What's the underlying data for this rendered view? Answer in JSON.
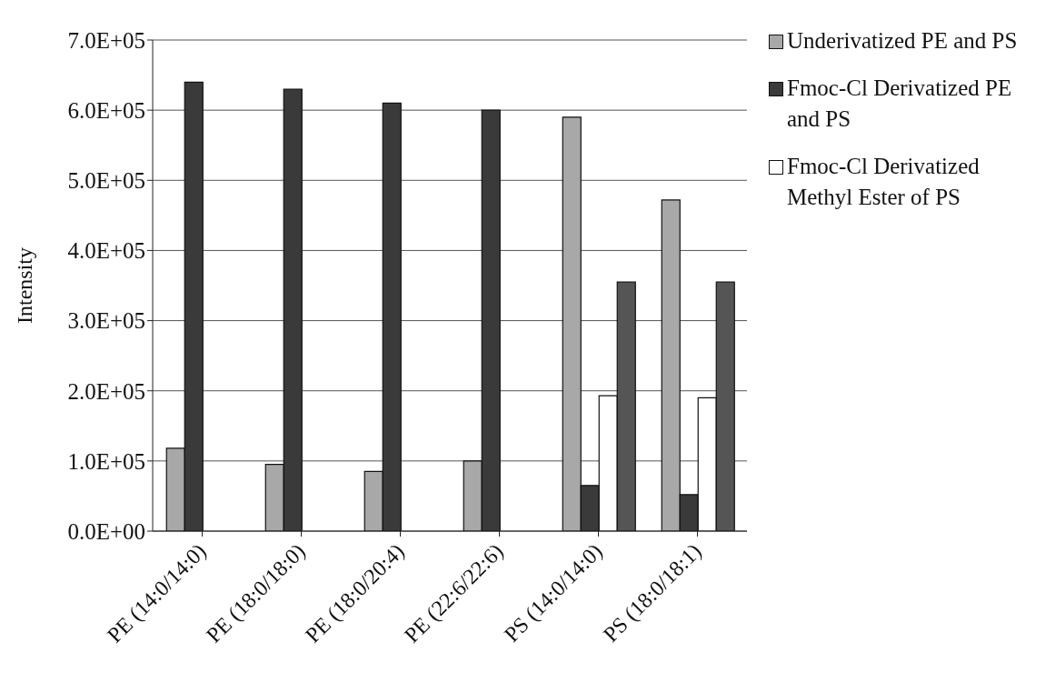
{
  "chart_data": {
    "type": "bar",
    "ylabel": "Intensity",
    "categories": [
      "PE (14:0/14:0)",
      "PE (18:0/18:0)",
      "PE (18:0/20:4)",
      "PE (22:6/22:6)",
      "PS (14:0/14:0)",
      "PS (18:0/18:1)"
    ],
    "series": [
      {
        "name": "Underivatized PE and PS",
        "color": "#a8a8a8",
        "values": [
          118000,
          95000,
          85000,
          100000,
          590000,
          472000
        ]
      },
      {
        "name": "Fmoc-Cl Derivatized PE and PS",
        "color": "#3a3a3a",
        "values": [
          640000,
          630000,
          610000,
          600000,
          65000,
          52000
        ]
      },
      {
        "name": "Fmoc-Cl Derivatized Methyl Ester of PS",
        "color": "#ffffff",
        "values": [
          null,
          null,
          null,
          null,
          193000,
          190000
        ]
      },
      {
        "color": "#555555",
        "values": [
          null,
          null,
          null,
          null,
          355000,
          355000
        ]
      }
    ],
    "ylim": [
      0,
      700000
    ],
    "yticks": [
      {
        "value": 0,
        "label": "0.0E+00"
      },
      {
        "value": 100000,
        "label": "1.0E+05"
      },
      {
        "value": 200000,
        "label": "2.0E+05"
      },
      {
        "value": 300000,
        "label": "3.0E+05"
      },
      {
        "value": 400000,
        "label": "4.0E+05"
      },
      {
        "value": 500000,
        "label": "5.0E+05"
      },
      {
        "value": 600000,
        "label": "6.0E+05"
      },
      {
        "value": 700000,
        "label": "7.0E+05"
      }
    ],
    "grid": "y",
    "legend": "top right"
  }
}
